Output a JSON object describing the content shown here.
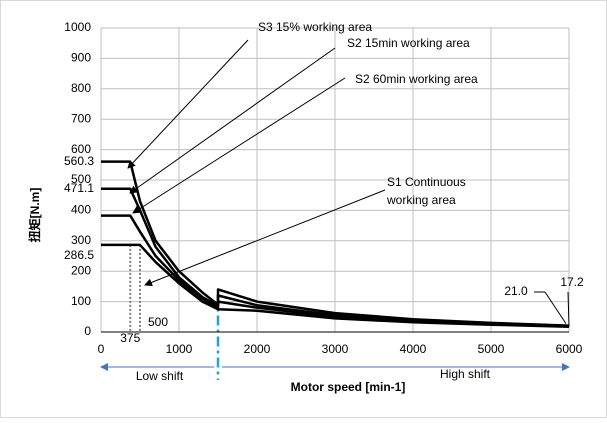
{
  "chart_data": {
    "type": "line",
    "y_label": "扭矩[N.m]",
    "x_label": "Motor speed [min-1]",
    "x": [
      0,
      375,
      500,
      700,
      1000,
      1300,
      1500,
      1500,
      2000,
      3000,
      4000,
      5000,
      6000
    ],
    "series": [
      {
        "label_lines": [
          "S3  15% working area"
        ],
        "color": "#000000",
        "values": [
          560.3,
          560.3,
          430,
          300,
          200,
          130,
          90,
          140,
          100,
          62,
          42,
          30,
          21
        ]
      },
      {
        "label_lines": [
          "S2 15min working area"
        ],
        "color": "#000000",
        "values": [
          471.1,
          471.1,
          400,
          280,
          180,
          115,
          85,
          120,
          88,
          55,
          38,
          28,
          20
        ]
      },
      {
        "label_lines": [
          "S2 60min working area"
        ],
        "color": "#000000",
        "values": [
          383,
          383,
          330,
          250,
          170,
          110,
          80,
          100,
          80,
          50,
          35,
          26,
          19
        ]
      },
      {
        "label_lines": [
          "S1 Continuous",
          "working area"
        ],
        "color": "#000000",
        "values": [
          286.5,
          286.5,
          286.5,
          230,
          160,
          100,
          75,
          75,
          70,
          45,
          32,
          24,
          17.2
        ]
      }
    ],
    "xlim": [
      0,
      6000
    ],
    "xticks": [
      0,
      1000,
      2000,
      3000,
      4000,
      5000,
      6000
    ],
    "ylim": [
      0,
      1000
    ],
    "yticks": [
      0,
      100,
      200,
      300,
      400,
      500,
      600,
      700,
      800,
      900,
      1000
    ],
    "grid": true,
    "level_labels": [
      {
        "value": 560.3,
        "label": "560.3"
      },
      {
        "value": 471.1,
        "label": "471.1"
      },
      {
        "value": 286.5,
        "label": "286.5"
      }
    ],
    "speed_labels": [
      {
        "value": 375,
        "label": "375"
      },
      {
        "value": 500,
        "label": "500"
      }
    ],
    "end_labels": [
      {
        "value": 21.0,
        "label": "21.0"
      },
      {
        "value": 17.2,
        "label": "17.2"
      }
    ],
    "shift_x": 1500,
    "shift_color": "#1fa3d8",
    "shift_labels": [
      "Low shift",
      "High shift"
    ]
  }
}
